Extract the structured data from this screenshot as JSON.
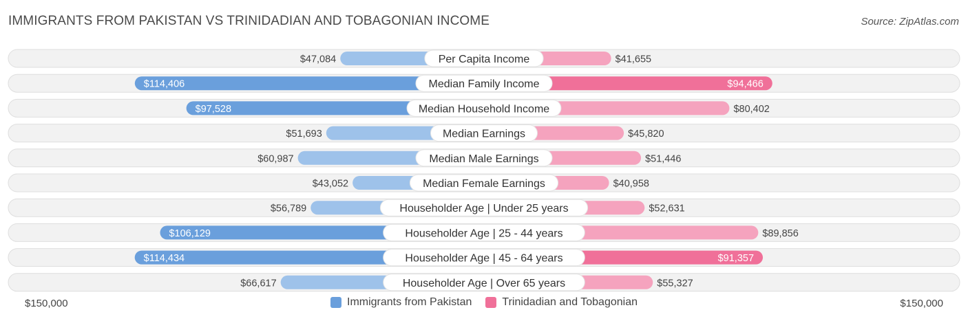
{
  "title": "IMMIGRANTS FROM PAKISTAN VS TRINIDADIAN AND TOBAGONIAN INCOME",
  "source": "Source: ZipAtlas.com",
  "axis": {
    "left_label": "$150,000",
    "right_label": "$150,000"
  },
  "legend": {
    "left": {
      "label": "Immigrants from Pakistan",
      "color": "#6a9fdc"
    },
    "right": {
      "label": "Trinidadian and Tobagonian",
      "color": "#f07099"
    }
  },
  "chart_data": {
    "type": "bar",
    "orientation": "diverging-horizontal",
    "title": "IMMIGRANTS FROM PAKISTAN VS TRINIDADIAN AND TOBAGONIAN INCOME",
    "xlim": [
      0,
      150000
    ],
    "categories": [
      "Per Capita Income",
      "Median Family Income",
      "Median Household Income",
      "Median Earnings",
      "Median Male Earnings",
      "Median Female Earnings",
      "Householder Age | Under 25 years",
      "Householder Age | 25 - 44 years",
      "Householder Age | 45 - 64 years",
      "Householder Age | Over 65 years"
    ],
    "series": [
      {
        "name": "Immigrants from Pakistan",
        "values": [
          47084,
          114406,
          97528,
          51693,
          60987,
          43052,
          56789,
          106129,
          114434,
          66617
        ],
        "labels": [
          "$47,084",
          "$114,406",
          "$97,528",
          "$51,693",
          "$60,987",
          "$43,052",
          "$56,789",
          "$106,129",
          "$114,434",
          "$66,617"
        ]
      },
      {
        "name": "Trinidadian and Tobagonian",
        "values": [
          41655,
          94466,
          80402,
          45820,
          51446,
          40958,
          52631,
          89856,
          91357,
          55327
        ],
        "labels": [
          "$41,655",
          "$94,466",
          "$80,402",
          "$45,820",
          "$51,446",
          "$40,958",
          "$52,631",
          "$89,856",
          "$91,357",
          "$55,327"
        ]
      }
    ]
  }
}
